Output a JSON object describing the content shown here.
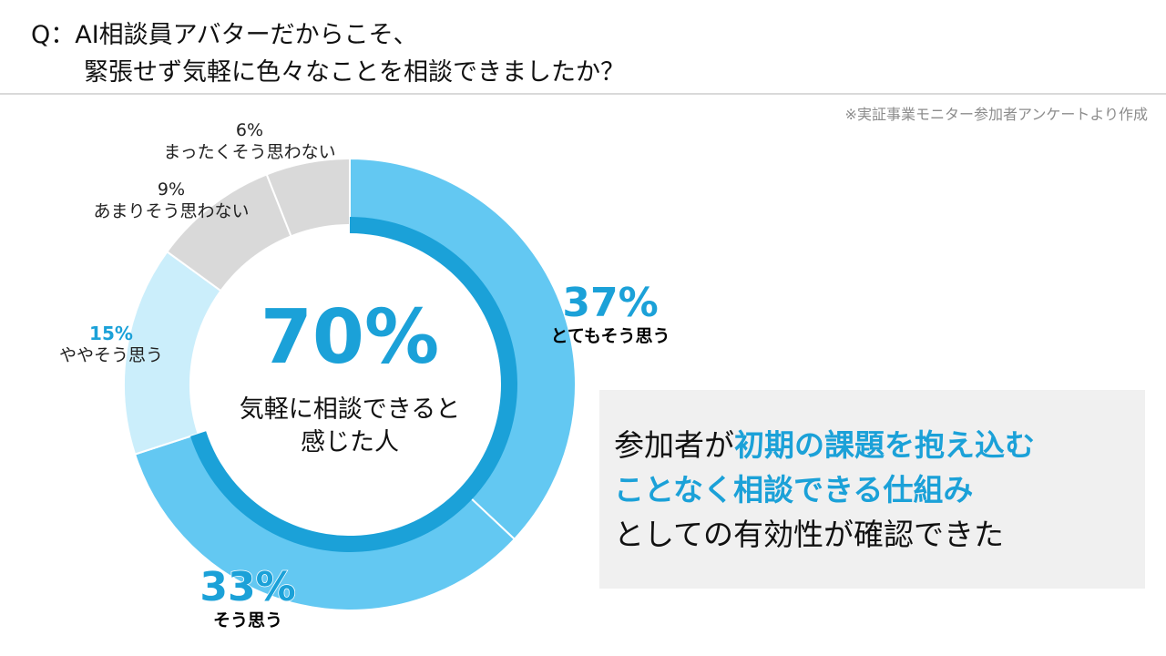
{
  "title": {
    "line1": "Q：AI相談員アバターだからこそ、",
    "line2": "緊張せず気軽に色々なことを相談できましたか？"
  },
  "source_note": "※実証事業モニター参加者アンケートより作成",
  "chart_data": {
    "type": "pie",
    "donut": true,
    "start": "top",
    "direction": "clockwise",
    "slices": [
      {
        "label": "とてもそう思う",
        "value": 37,
        "display": "37%",
        "color": "#63c8f2"
      },
      {
        "label": "そう思う",
        "value": 33,
        "display": "33%",
        "color": "#63c8f2"
      },
      {
        "label": "ややそう思う",
        "value": 15,
        "display": "15%",
        "color": "#cbeefb"
      },
      {
        "label": "あまりそう思わない",
        "value": 9,
        "display": "9%",
        "color": "#d9d9d9"
      },
      {
        "label": "まったくそう思わない",
        "value": 6,
        "display": "6%",
        "color": "#d9d9d9"
      }
    ],
    "inner_ring": {
      "value": 70,
      "color": "#1ba1d8"
    },
    "center": {
      "value": "70%",
      "line1": "気軽に相談できると",
      "line2": "感じた人"
    }
  },
  "callout": {
    "prefix": "参加者が",
    "highlight1": "初期の課題を抱え込む",
    "highlight2": "ことなく相談できる仕組み",
    "suffix": "としての有効性が確認できた",
    "highlight_color": "#1ba1d8",
    "background": "#f0f0f0"
  }
}
